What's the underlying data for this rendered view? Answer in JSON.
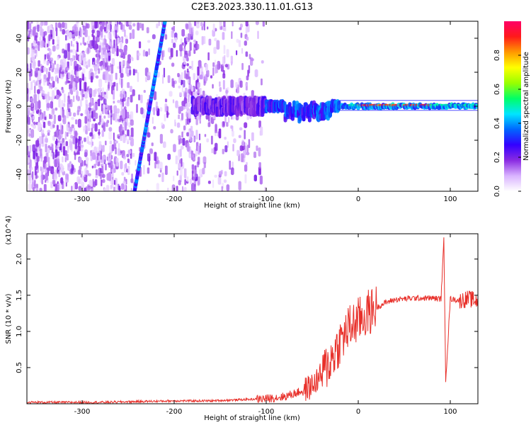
{
  "title": "C2E3.2023.330.11.01.G13",
  "chart_data": [
    {
      "type": "heatmap",
      "xlabel": "Height of straight line (km)",
      "ylabel": "Frequency (Hz)",
      "xlim": [
        -360,
        130
      ],
      "ylim": [
        -50,
        50
      ],
      "x_ticks": [
        -300,
        -200,
        -100,
        0,
        100
      ],
      "y_ticks": [
        -40,
        -20,
        0,
        20,
        40
      ],
      "colorbar": {
        "label": "Normalized spectral amplitude",
        "range": [
          0,
          1
        ],
        "ticks": [
          0.0,
          0.2,
          0.4,
          0.6,
          0.8
        ],
        "colors": [
          "#ffffff",
          "#d9b3ff",
          "#8a2be2",
          "#3300ff",
          "#0066ff",
          "#00e5ff",
          "#00ff66",
          "#99ff00",
          "#ffff00",
          "#ff9900",
          "#ff1a1a",
          "#ff0066"
        ]
      },
      "features": [
        {
          "name": "diagonal-streak",
          "x": [
            -243,
            -210
          ],
          "y": [
            -50,
            50
          ],
          "amplitude": 0.35
        },
        {
          "name": "main-line",
          "x": [
            -180,
            130
          ],
          "y": [
            0,
            0
          ],
          "amplitude_peak": 0.95
        },
        {
          "name": "noise-region",
          "x": [
            -360,
            -100
          ],
          "y": [
            -50,
            50
          ],
          "amplitude": 0.1
        }
      ]
    },
    {
      "type": "line",
      "xlabel": "Height of straight line (km)",
      "ylabel": "SNR (10 * v/v)",
      "y_multiplier": "(x10^4)",
      "xlim": [
        -360,
        130
      ],
      "ylim": [
        0,
        2.35
      ],
      "x_ticks": [
        -300,
        -200,
        -100,
        0,
        100
      ],
      "y_ticks": [
        0.5,
        1.0,
        1.5,
        2.0
      ],
      "color": "#e8302a",
      "x": [
        -360,
        -320,
        -280,
        -240,
        -200,
        -160,
        -120,
        -100,
        -80,
        -60,
        -50,
        -40,
        -30,
        -20,
        -10,
        0,
        10,
        20,
        30,
        40,
        60,
        80,
        90,
        93,
        95,
        100,
        110,
        120,
        130
      ],
      "y": [
        0.02,
        0.02,
        0.02,
        0.03,
        0.04,
        0.04,
        0.06,
        0.07,
        0.1,
        0.18,
        0.25,
        0.4,
        0.6,
        0.85,
        1.05,
        1.15,
        1.25,
        1.33,
        1.4,
        1.44,
        1.46,
        1.46,
        1.45,
        2.3,
        0.3,
        1.45,
        1.43,
        1.45,
        1.42
      ]
    }
  ]
}
